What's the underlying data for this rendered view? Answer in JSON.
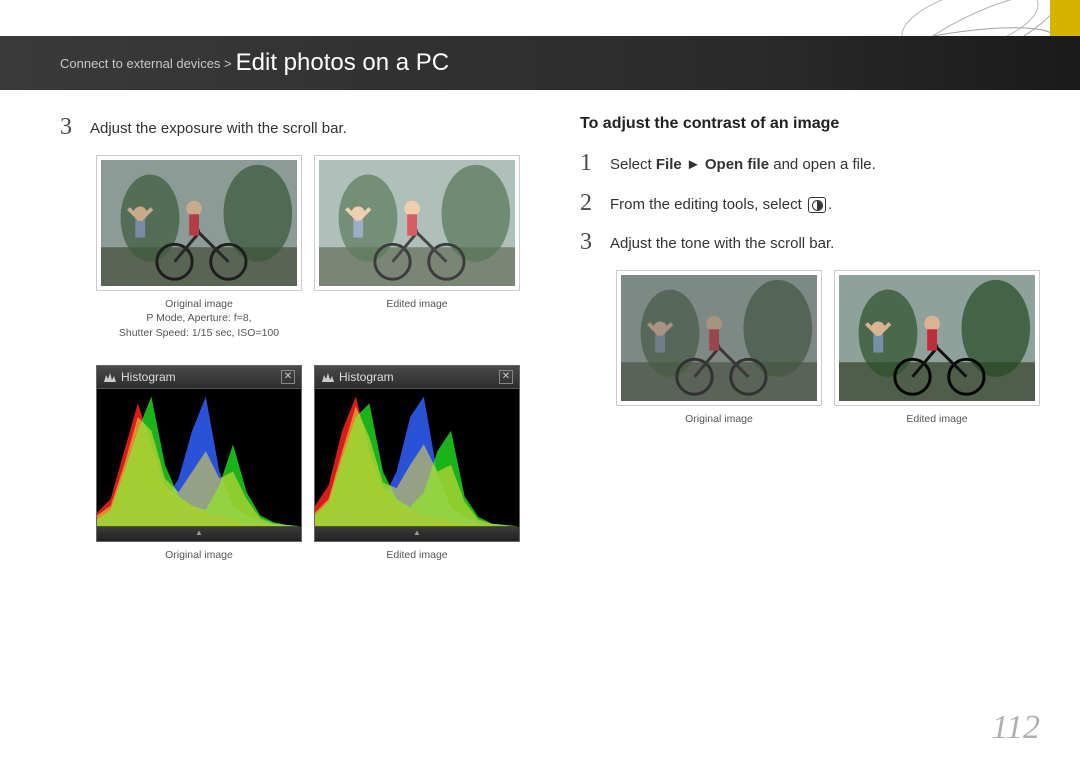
{
  "header": {
    "breadcrumb": "Connect to external devices >",
    "title": "Edit photos on a PC",
    "accent_color": "#d4b400"
  },
  "left_column": {
    "step3_num": "3",
    "step3_text": "Adjust the exposure with the scroll bar.",
    "photo_pair": {
      "original": {
        "caption_line1": "Original image",
        "caption_line2": "P Mode, Aperture: f=8,",
        "caption_line3": "Shutter Speed: 1/15 sec, ISO=100"
      },
      "edited": {
        "caption_line1": "Edited image"
      }
    },
    "histogram_pair": {
      "panel_title": "Histogram",
      "original_caption": "Original image",
      "edited_caption": "Edited image",
      "colors": {
        "red": "#ff2020",
        "green": "#20e020",
        "blue": "#3060ff",
        "yellow": "#f0e040",
        "white": "#ffffff"
      },
      "original_curves": {
        "red": [
          10,
          20,
          55,
          90,
          60,
          30,
          20,
          15,
          10,
          8,
          5,
          3,
          2,
          1,
          0,
          0
        ],
        "green": [
          5,
          12,
          40,
          70,
          95,
          45,
          22,
          15,
          12,
          30,
          60,
          25,
          8,
          3,
          1,
          0
        ],
        "blue": [
          2,
          6,
          18,
          35,
          25,
          18,
          35,
          70,
          95,
          40,
          15,
          8,
          4,
          2,
          1,
          0
        ],
        "lum": [
          8,
          15,
          45,
          80,
          70,
          35,
          25,
          40,
          55,
          35,
          40,
          20,
          6,
          2,
          1,
          0
        ]
      },
      "edited_curves": {
        "red": [
          15,
          30,
          70,
          95,
          55,
          28,
          18,
          12,
          8,
          6,
          4,
          2,
          1,
          0,
          0,
          0
        ],
        "green": [
          8,
          18,
          50,
          80,
          90,
          40,
          20,
          14,
          25,
          55,
          70,
          22,
          7,
          2,
          1,
          0
        ],
        "blue": [
          3,
          8,
          22,
          40,
          28,
          20,
          40,
          80,
          95,
          38,
          14,
          7,
          3,
          1,
          0,
          0
        ],
        "lum": [
          10,
          20,
          55,
          88,
          65,
          32,
          28,
          45,
          60,
          40,
          45,
          18,
          5,
          2,
          1,
          0
        ]
      }
    }
  },
  "right_column": {
    "section_title": "To adjust the contrast of an image",
    "step1_num": "1",
    "step1_pre": "Select ",
    "step1_bold": "File ► Open file",
    "step1_post": " and open a file.",
    "step2_num": "2",
    "step2_pre": "From the editing tools, select ",
    "step2_post": ".",
    "step3_num": "3",
    "step3_text": "Adjust the tone with the scroll bar.",
    "photo_pair": {
      "original_caption": "Original image",
      "edited_caption": "Edited image"
    }
  },
  "page_number": "112"
}
